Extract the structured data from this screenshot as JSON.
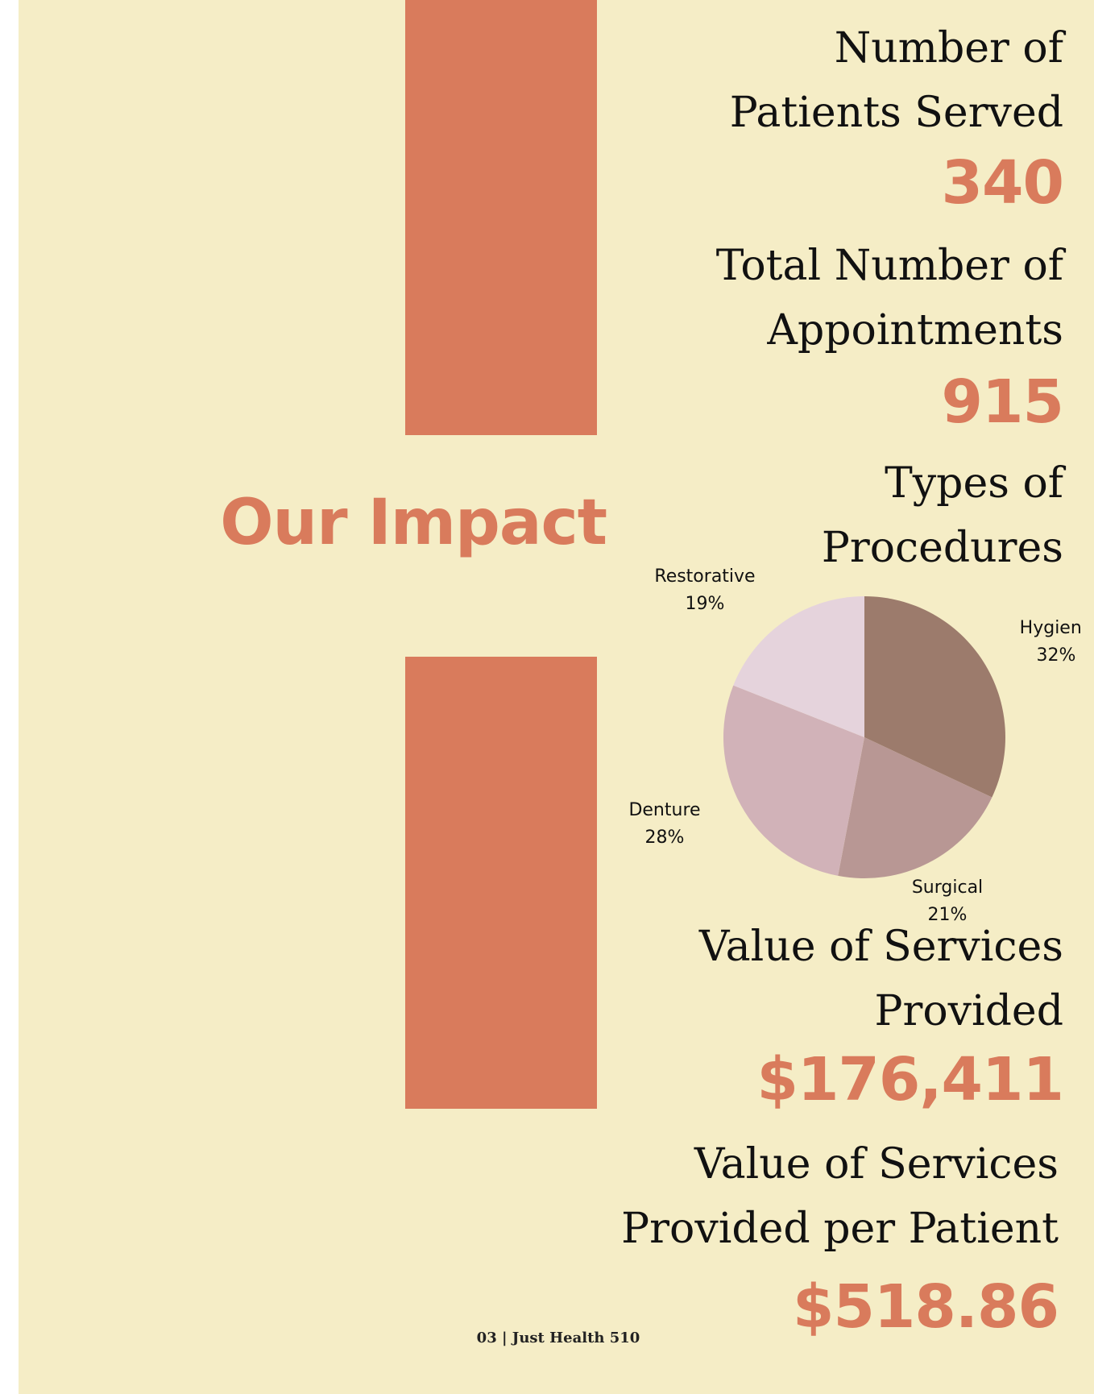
{
  "page": {
    "background": "#f5edc6",
    "accent": "#d97b5c"
  },
  "title": "Our Impact",
  "stats": {
    "patients": {
      "label_line1": "Number of",
      "label_line2": "Patients Served",
      "value": "340"
    },
    "appointments": {
      "label_line1": "Total Number of",
      "label_line2": "Appointments",
      "value": "915"
    },
    "procedures": {
      "label_line1": "Types of",
      "label_line2": "Procedures"
    },
    "services_value": {
      "label_line1": "Value of Services",
      "label_line2": "Provided",
      "value": "$176,411"
    },
    "per_patient": {
      "label_line1": "Value of Services",
      "label_line2": "Provided per Patient",
      "value": "$518.86"
    }
  },
  "chart_data": {
    "type": "pie",
    "slices": [
      {
        "label": "Hygiene",
        "percent_label": "32%",
        "value": 32,
        "color": "#9c7b6c"
      },
      {
        "label": "Surgical",
        "percent_label": "21%",
        "value": 21,
        "color": "#b89794"
      },
      {
        "label": "Denture",
        "percent_label": "28%",
        "value": 28,
        "color": "#d1b2b8"
      },
      {
        "label": "Restorative",
        "percent_label": "19%",
        "value": 19,
        "color": "#e5d3dc"
      }
    ]
  },
  "footer": "03 | Just Health 510"
}
